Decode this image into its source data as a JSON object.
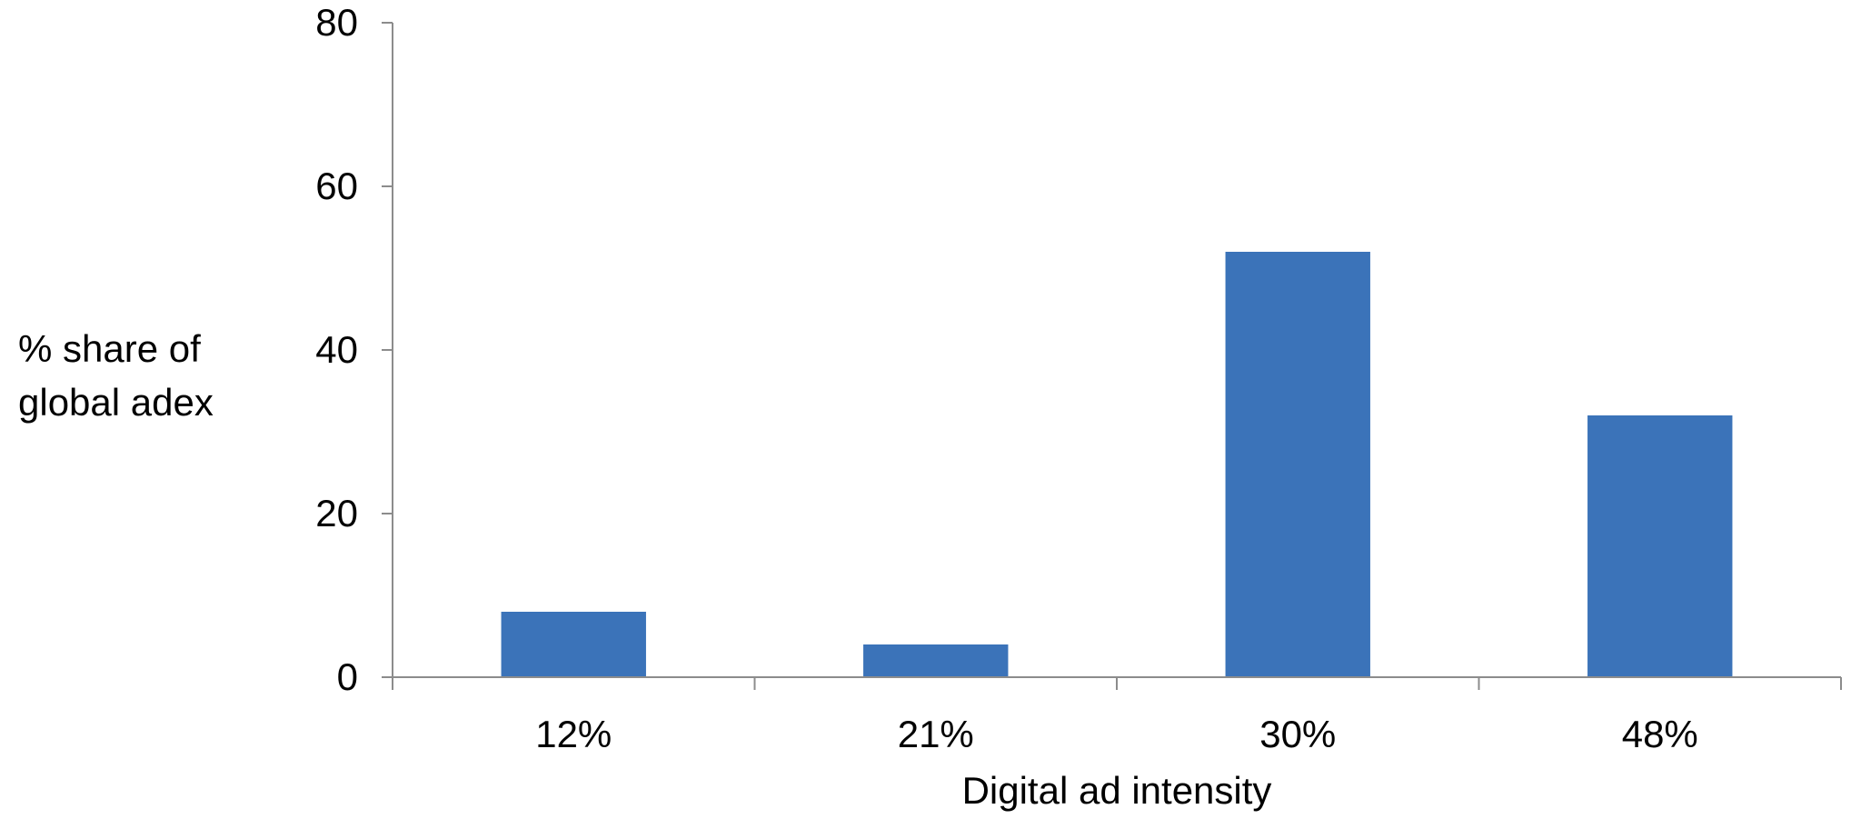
{
  "chart_data": {
    "type": "bar",
    "categories": [
      "12%",
      "21%",
      "30%",
      "48%"
    ],
    "values": [
      8,
      4,
      52,
      32
    ],
    "xlabel": "Digital ad intensity",
    "ylabel_lines": [
      "% share of",
      "global adex"
    ],
    "ylim": [
      0,
      80
    ],
    "yticks": [
      0,
      20,
      40,
      60,
      80
    ],
    "grid": false,
    "legend": "none",
    "bar_color": "#3b73b9",
    "axis_color": "#8c8c8c"
  }
}
